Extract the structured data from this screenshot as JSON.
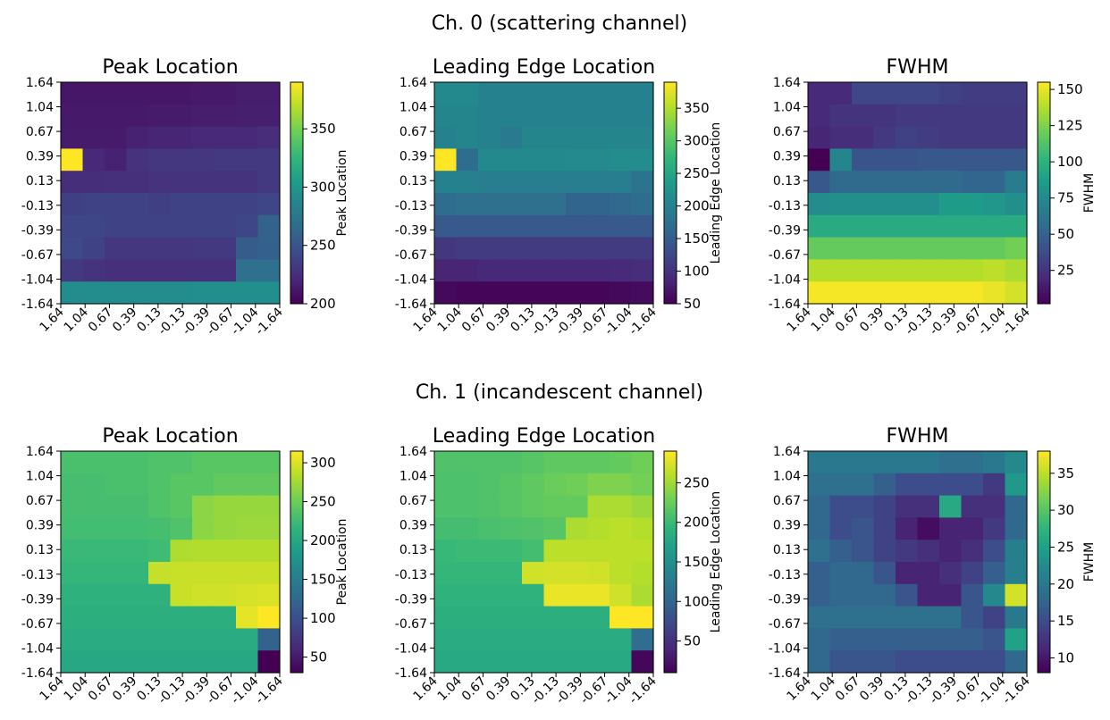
{
  "figure": {
    "row_titles": [
      "Ch. 0 (scattering channel)",
      "Ch. 1 (incandescent channel)"
    ]
  },
  "colormap": [
    "#440154",
    "#482878",
    "#3e4989",
    "#31688e",
    "#26828e",
    "#1f9e89",
    "#35b779",
    "#6ece58",
    "#b5de2b",
    "#fde725"
  ],
  "chart_data": [
    {
      "type": "heatmap",
      "title": "Peak Location",
      "colorbar_label": "Peak Location",
      "colorbar_ticks": [
        200,
        250,
        300,
        350
      ],
      "clim": [
        200,
        390
      ],
      "x_ticks": [
        "1.64",
        "1.04",
        "0.67",
        "0.39",
        "0.13",
        "-0.13",
        "-0.39",
        "-0.67",
        "-1.04",
        "-1.64"
      ],
      "y_ticks": [
        "1.64",
        "1.04",
        "0.67",
        "0.39",
        "0.13",
        "-0.13",
        "-0.39",
        "-0.67",
        "-1.04",
        "-1.64"
      ],
      "values": [
        [
          212,
          212,
          212,
          212,
          212,
          212,
          213,
          213,
          215,
          215
        ],
        [
          213,
          213,
          213,
          213,
          214,
          214,
          215,
          215,
          216,
          216
        ],
        [
          214,
          214,
          214,
          218,
          220,
          220,
          221,
          221,
          222,
          224
        ],
        [
          390,
          222,
          218,
          228,
          230,
          230,
          230,
          232,
          232,
          232
        ],
        [
          225,
          225,
          226,
          226,
          228,
          228,
          228,
          228,
          228,
          232
        ],
        [
          236,
          238,
          238,
          238,
          236,
          238,
          238,
          238,
          238,
          240
        ],
        [
          240,
          240,
          238,
          238,
          238,
          238,
          238,
          238,
          240,
          260
        ],
        [
          242,
          238,
          230,
          230,
          230,
          230,
          232,
          232,
          255,
          258
        ],
        [
          232,
          228,
          226,
          226,
          226,
          226,
          226,
          226,
          270,
          270
        ],
        [
          292,
          292,
          292,
          292,
          292,
          292,
          294,
          294,
          294,
          294
        ]
      ]
    },
    {
      "type": "heatmap",
      "title": "Leading Edge Location",
      "colorbar_label": "Leading Edge Location",
      "colorbar_ticks": [
        50,
        100,
        150,
        200,
        250,
        300,
        350
      ],
      "clim": [
        50,
        390
      ],
      "x_ticks": [
        "1.64",
        "1.04",
        "0.67",
        "0.39",
        "0.13",
        "-0.13",
        "-0.39",
        "-0.67",
        "-1.04",
        "-1.64"
      ],
      "y_ticks": [
        "1.64",
        "1.04",
        "0.67",
        "0.39",
        "0.13",
        "-0.13",
        "-0.39",
        "-0.67",
        "-1.04",
        "-1.64"
      ],
      "values": [
        [
          210,
          210,
          200,
          200,
          200,
          200,
          200,
          200,
          200,
          200
        ],
        [
          205,
          205,
          200,
          200,
          200,
          200,
          200,
          200,
          200,
          200
        ],
        [
          200,
          205,
          200,
          190,
          205,
          205,
          205,
          205,
          205,
          205
        ],
        [
          390,
          170,
          210,
          210,
          210,
          210,
          212,
          212,
          215,
          215
        ],
        [
          200,
          200,
          195,
          195,
          195,
          195,
          195,
          195,
          195,
          180
        ],
        [
          170,
          175,
          175,
          175,
          175,
          175,
          160,
          160,
          165,
          170
        ],
        [
          145,
          145,
          145,
          145,
          145,
          145,
          145,
          145,
          145,
          145
        ],
        [
          105,
          110,
          110,
          110,
          110,
          110,
          110,
          110,
          110,
          110
        ],
        [
          85,
          85,
          88,
          88,
          88,
          88,
          88,
          88,
          90,
          95
        ],
        [
          58,
          55,
          55,
          55,
          55,
          55,
          55,
          55,
          58,
          60
        ]
      ]
    },
    {
      "type": "heatmap",
      "title": "FWHM",
      "colorbar_label": "FWHM",
      "colorbar_ticks": [
        25,
        50,
        75,
        100,
        125,
        150
      ],
      "clim": [
        2,
        155
      ],
      "x_ticks": [
        "1.64",
        "1.04",
        "0.67",
        "0.39",
        "0.13",
        "-0.13",
        "-0.39",
        "-0.67",
        "-1.04",
        "-1.64"
      ],
      "y_ticks": [
        "1.64",
        "1.04",
        "0.67",
        "0.39",
        "0.13",
        "-0.13",
        "-0.39",
        "-0.67",
        "-1.04",
        "-1.64"
      ],
      "values": [
        [
          20,
          20,
          35,
          35,
          35,
          35,
          32,
          30,
          30,
          30
        ],
        [
          20,
          25,
          25,
          25,
          28,
          28,
          28,
          28,
          28,
          28
        ],
        [
          18,
          22,
          22,
          28,
          32,
          30,
          28,
          28,
          28,
          28
        ],
        [
          2,
          72,
          42,
          42,
          42,
          44,
          44,
          44,
          44,
          44
        ],
        [
          44,
          55,
          55,
          55,
          55,
          55,
          55,
          52,
          52,
          66
        ],
        [
          76,
          78,
          78,
          78,
          78,
          78,
          86,
          86,
          82,
          78
        ],
        [
          95,
          95,
          95,
          95,
          95,
          95,
          95,
          95,
          95,
          95
        ],
        [
          118,
          118,
          118,
          118,
          118,
          118,
          118,
          118,
          118,
          122
        ],
        [
          138,
          138,
          138,
          138,
          138,
          138,
          138,
          138,
          140,
          136
        ],
        [
          153,
          153,
          153,
          153,
          153,
          153,
          153,
          153,
          150,
          145
        ]
      ]
    },
    {
      "type": "heatmap",
      "title": "Peak Location",
      "colorbar_label": "Peak Location",
      "colorbar_ticks": [
        50,
        100,
        150,
        200,
        250,
        300
      ],
      "clim": [
        30,
        315
      ],
      "x_ticks": [
        "1.64",
        "1.04",
        "0.67",
        "0.39",
        "0.13",
        "-0.13",
        "-0.39",
        "-0.67",
        "-1.04",
        "-1.64"
      ],
      "y_ticks": [
        "1.64",
        "1.04",
        "0.67",
        "0.39",
        "0.13",
        "-0.13",
        "-0.39",
        "-0.67",
        "-1.04",
        "-1.64"
      ],
      "values": [
        [
          232,
          232,
          232,
          232,
          235,
          235,
          240,
          240,
          240,
          240
        ],
        [
          230,
          230,
          232,
          232,
          235,
          240,
          240,
          245,
          245,
          245
        ],
        [
          230,
          230,
          230,
          230,
          235,
          240,
          265,
          270,
          270,
          270
        ],
        [
          228,
          228,
          228,
          228,
          230,
          235,
          265,
          270,
          272,
          272
        ],
        [
          222,
          222,
          222,
          222,
          225,
          280,
          282,
          282,
          282,
          282
        ],
        [
          218,
          218,
          218,
          218,
          290,
          292,
          292,
          292,
          292,
          292
        ],
        [
          212,
          212,
          212,
          212,
          212,
          292,
          295,
          295,
          298,
          300
        ],
        [
          208,
          208,
          208,
          208,
          208,
          208,
          208,
          208,
          305,
          315
        ],
        [
          205,
          205,
          205,
          205,
          205,
          205,
          205,
          205,
          205,
          120
        ],
        [
          200,
          200,
          200,
          200,
          200,
          200,
          200,
          200,
          200,
          30
        ]
      ]
    },
    {
      "type": "heatmap",
      "title": "Leading Edge Location",
      "colorbar_label": "Leading Edge Location",
      "colorbar_ticks": [
        50,
        100,
        150,
        200,
        250
      ],
      "clim": [
        10,
        290
      ],
      "x_ticks": [
        "1.64",
        "1.04",
        "0.67",
        "0.39",
        "0.13",
        "-0.13",
        "-0.39",
        "-0.67",
        "-1.04",
        "-1.64"
      ],
      "y_ticks": [
        "1.64",
        "1.04",
        "0.67",
        "0.39",
        "0.13",
        "-0.13",
        "-0.39",
        "-0.67",
        "-1.04",
        "-1.64"
      ],
      "values": [
        [
          212,
          212,
          212,
          212,
          215,
          220,
          220,
          220,
          222,
          228
        ],
        [
          210,
          210,
          212,
          215,
          220,
          225,
          228,
          235,
          235,
          230
        ],
        [
          210,
          210,
          212,
          215,
          220,
          222,
          222,
          255,
          255,
          248
        ],
        [
          205,
          205,
          208,
          210,
          212,
          215,
          255,
          258,
          262,
          258
        ],
        [
          198,
          200,
          200,
          200,
          205,
          262,
          262,
          262,
          262,
          262
        ],
        [
          195,
          195,
          195,
          195,
          270,
          272,
          272,
          270,
          262,
          258
        ],
        [
          190,
          190,
          190,
          190,
          190,
          282,
          282,
          282,
          270,
          255
        ],
        [
          185,
          185,
          185,
          185,
          185,
          185,
          185,
          185,
          290,
          290
        ],
        [
          182,
          182,
          182,
          182,
          182,
          182,
          182,
          182,
          182,
          110
        ],
        [
          178,
          178,
          178,
          178,
          178,
          178,
          178,
          178,
          178,
          15
        ]
      ]
    },
    {
      "type": "heatmap",
      "title": "FWHM",
      "colorbar_label": "FWHM",
      "colorbar_ticks": [
        10,
        15,
        20,
        25,
        30,
        35
      ],
      "clim": [
        8,
        38
      ],
      "x_ticks": [
        "1.64",
        "1.04",
        "0.67",
        "0.39",
        "0.13",
        "-0.13",
        "-0.39",
        "-0.67",
        "-1.04",
        "-1.64"
      ],
      "y_ticks": [
        "1.64",
        "1.04",
        "0.67",
        "0.39",
        "0.13",
        "-0.13",
        "-0.39",
        "-0.67",
        "-1.04",
        "-1.64"
      ],
      "values": [
        [
          20,
          20,
          20,
          20,
          20,
          20,
          19,
          19,
          20,
          22
        ],
        [
          19,
          19,
          19,
          17,
          15,
          15,
          15,
          15,
          13,
          24
        ],
        [
          18,
          15,
          15,
          14,
          12,
          12,
          26,
          12,
          12,
          18
        ],
        [
          18,
          15,
          16,
          14,
          11,
          9,
          11,
          11,
          13,
          18
        ],
        [
          19,
          17,
          16,
          14,
          13,
          12,
          11,
          12,
          15,
          21
        ],
        [
          17,
          18,
          18,
          16,
          11,
          11,
          12,
          14,
          17,
          21
        ],
        [
          17,
          18,
          18,
          18,
          16,
          11,
          11,
          16,
          22,
          36
        ],
        [
          19,
          19,
          19,
          19,
          19,
          19,
          19,
          16,
          14,
          20
        ],
        [
          18,
          17,
          17,
          17,
          17,
          17,
          17,
          17,
          16,
          25
        ],
        [
          18,
          16,
          16,
          16,
          15,
          15,
          15,
          15,
          15,
          18
        ]
      ]
    }
  ]
}
